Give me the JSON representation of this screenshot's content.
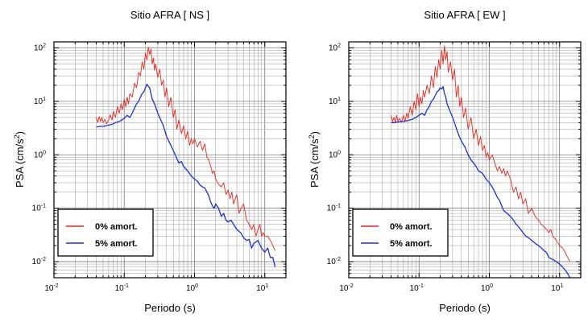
{
  "chart_data": [
    {
      "type": "line",
      "title": "Sitio AFRA [ NS ]",
      "xlabel": "Periodo (s)",
      "ylabel_main": "PSA (cm/s",
      "ylabel_sup": "2",
      "ylabel_tail": ")",
      "x_scale": "log",
      "y_scale": "log",
      "xlim": [
        0.01,
        20
      ],
      "ylim": [
        0.005,
        130
      ],
      "grid": true,
      "x_ticks": [
        {
          "base": "10",
          "exp": "-2"
        },
        {
          "base": "10",
          "exp": "-1"
        },
        {
          "base": "10",
          "exp": "0"
        },
        {
          "base": "10",
          "exp": "1"
        }
      ],
      "y_ticks": [
        {
          "base": "10",
          "exp": "-2"
        },
        {
          "base": "10",
          "exp": "-1"
        },
        {
          "base": "10",
          "exp": "0"
        },
        {
          "base": "10",
          "exp": "1"
        },
        {
          "base": "10",
          "exp": "2"
        }
      ],
      "legend_position": "bottom-left",
      "series": [
        {
          "name": "0% amort.",
          "color": "#e8261e",
          "x": [
            0.04,
            0.042,
            0.044,
            0.046,
            0.048,
            0.05,
            0.053,
            0.056,
            0.06,
            0.063,
            0.067,
            0.07,
            0.075,
            0.08,
            0.085,
            0.09,
            0.095,
            0.1,
            0.105,
            0.11,
            0.115,
            0.12,
            0.13,
            0.14,
            0.15,
            0.16,
            0.17,
            0.18,
            0.19,
            0.2,
            0.21,
            0.22,
            0.23,
            0.24,
            0.25,
            0.26,
            0.27,
            0.28,
            0.3,
            0.32,
            0.34,
            0.36,
            0.38,
            0.4,
            0.43,
            0.46,
            0.5,
            0.53,
            0.56,
            0.6,
            0.65,
            0.7,
            0.75,
            0.8,
            0.85,
            0.9,
            0.95,
            1.0,
            1.1,
            1.2,
            1.3,
            1.4,
            1.5,
            1.6,
            1.7,
            1.8,
            1.9,
            2.0,
            2.2,
            2.4,
            2.6,
            2.8,
            3.0,
            3.2,
            3.4,
            3.6,
            3.8,
            4.0,
            4.3,
            4.6,
            5.0,
            5.5,
            6.0,
            6.5,
            7.0,
            7.5,
            8.0,
            8.5,
            9.0,
            9.5,
            10,
            11,
            12,
            13,
            14
          ],
          "values": [
            5.0,
            4.0,
            5.2,
            4.2,
            5.0,
            4.0,
            4.6,
            3.8,
            4.5,
            5.6,
            4.5,
            6.5,
            5.0,
            8.0,
            6.0,
            9.0,
            7.0,
            11,
            8.0,
            12,
            9.0,
            14,
            12,
            22,
            18,
            35,
            30,
            55,
            40,
            80,
            60,
            105,
            75,
            95,
            50,
            65,
            38,
            50,
            28,
            40,
            20,
            25,
            12,
            18,
            8.0,
            12,
            5.0,
            7.0,
            3.0,
            4.5,
            2.5,
            3.5,
            2.0,
            2.8,
            1.5,
            2.0,
            1.6,
            2.0,
            1.4,
            1.8,
            1.2,
            1.6,
            0.9,
            0.8,
            0.6,
            0.45,
            0.5,
            0.35,
            0.28,
            0.25,
            0.3,
            0.18,
            0.22,
            0.15,
            0.2,
            0.12,
            0.15,
            0.18,
            0.08,
            0.1,
            0.12,
            0.06,
            0.05,
            0.04,
            0.05,
            0.03,
            0.04,
            0.05,
            0.03,
            0.035,
            0.03,
            0.03,
            0.025,
            0.02,
            0.016
          ]
        },
        {
          "name": "5% amort.",
          "color": "#1d2fd8",
          "x": [
            0.04,
            0.045,
            0.05,
            0.055,
            0.06,
            0.065,
            0.07,
            0.075,
            0.08,
            0.085,
            0.09,
            0.1,
            0.11,
            0.12,
            0.13,
            0.14,
            0.15,
            0.16,
            0.17,
            0.18,
            0.19,
            0.2,
            0.21,
            0.22,
            0.23,
            0.24,
            0.25,
            0.27,
            0.3,
            0.33,
            0.36,
            0.4,
            0.45,
            0.5,
            0.55,
            0.6,
            0.65,
            0.7,
            0.8,
            0.9,
            1.0,
            1.1,
            1.2,
            1.3,
            1.4,
            1.5,
            1.6,
            1.7,
            1.8,
            1.9,
            2.0,
            2.2,
            2.4,
            2.6,
            2.8,
            3.0,
            3.3,
            3.6,
            4.0,
            4.5,
            5.0,
            5.5,
            6.0,
            6.5,
            7.0,
            8.0,
            9.0,
            10,
            11,
            12,
            13,
            14
          ],
          "values": [
            3.3,
            3.4,
            3.4,
            3.5,
            3.6,
            3.7,
            3.8,
            4.0,
            4.1,
            4.2,
            4.4,
            4.8,
            5.5,
            5.0,
            6.0,
            7.5,
            9.0,
            10,
            12,
            14,
            15,
            18,
            21,
            19,
            18,
            14,
            11,
            9.0,
            6.0,
            4.5,
            3.5,
            2.2,
            1.6,
            1.2,
            0.9,
            0.7,
            0.75,
            0.6,
            0.5,
            0.4,
            0.35,
            0.32,
            0.27,
            0.25,
            0.24,
            0.2,
            0.17,
            0.13,
            0.11,
            0.1,
            0.12,
            0.1,
            0.07,
            0.08,
            0.06,
            0.055,
            0.06,
            0.05,
            0.04,
            0.035,
            0.028,
            0.025,
            0.026,
            0.018,
            0.022,
            0.025,
            0.018,
            0.015,
            0.018,
            0.012,
            0.012,
            0.008
          ]
        }
      ]
    },
    {
      "type": "line",
      "title": "Sitio AFRA [ EW ]",
      "xlabel": "Periodo (s)",
      "ylabel_main": "PSA (cm/s",
      "ylabel_sup": "2",
      "ylabel_tail": ")",
      "x_scale": "log",
      "y_scale": "log",
      "xlim": [
        0.01,
        20
      ],
      "ylim": [
        0.005,
        130
      ],
      "grid": true,
      "x_ticks": [
        {
          "base": "10",
          "exp": "-2"
        },
        {
          "base": "10",
          "exp": "-1"
        },
        {
          "base": "10",
          "exp": "0"
        },
        {
          "base": "10",
          "exp": "1"
        }
      ],
      "y_ticks": [
        {
          "base": "10",
          "exp": "-2"
        },
        {
          "base": "10",
          "exp": "-1"
        },
        {
          "base": "10",
          "exp": "0"
        },
        {
          "base": "10",
          "exp": "1"
        },
        {
          "base": "10",
          "exp": "2"
        }
      ],
      "legend_position": "bottom-left",
      "series": [
        {
          "name": "0% amort.",
          "color": "#e8261e",
          "x": [
            0.04,
            0.042,
            0.044,
            0.046,
            0.048,
            0.05,
            0.053,
            0.056,
            0.06,
            0.063,
            0.067,
            0.07,
            0.075,
            0.08,
            0.085,
            0.09,
            0.095,
            0.1,
            0.105,
            0.11,
            0.115,
            0.12,
            0.13,
            0.14,
            0.15,
            0.16,
            0.17,
            0.18,
            0.19,
            0.2,
            0.21,
            0.22,
            0.23,
            0.24,
            0.25,
            0.26,
            0.28,
            0.3,
            0.32,
            0.34,
            0.36,
            0.38,
            0.4,
            0.43,
            0.46,
            0.5,
            0.55,
            0.6,
            0.65,
            0.7,
            0.75,
            0.8,
            0.85,
            0.9,
            0.95,
            1.0,
            1.1,
            1.2,
            1.3,
            1.4,
            1.5,
            1.6,
            1.7,
            1.8,
            2.0,
            2.2,
            2.4,
            2.6,
            2.8,
            3.0,
            3.3,
            3.6,
            4.0,
            4.5,
            5.0,
            5.5,
            6.0,
            6.5,
            7.0,
            7.5,
            8.0,
            9.0,
            10,
            11,
            12,
            13,
            14
          ],
          "values": [
            5.5,
            4.2,
            5.0,
            4.0,
            5.5,
            4.2,
            4.8,
            4.0,
            5.5,
            4.2,
            6.0,
            4.8,
            8.0,
            5.5,
            10,
            7.0,
            14,
            8.0,
            12,
            9.0,
            16,
            12,
            20,
            14,
            30,
            18,
            45,
            28,
            60,
            40,
            90,
            50,
            110,
            60,
            85,
            35,
            55,
            25,
            40,
            12,
            20,
            8.0,
            12,
            5.0,
            7.5,
            3.0,
            5.0,
            2.0,
            3.0,
            1.5,
            2.2,
            1.2,
            1.5,
            0.9,
            1.1,
            0.8,
            1.0,
            0.7,
            0.5,
            0.6,
            0.45,
            0.55,
            0.4,
            0.5,
            0.35,
            0.2,
            0.25,
            0.15,
            0.2,
            0.12,
            0.15,
            0.08,
            0.1,
            0.07,
            0.06,
            0.05,
            0.045,
            0.04,
            0.035,
            0.04,
            0.03,
            0.025,
            0.02,
            0.018,
            0.015,
            0.012,
            0.01
          ]
        },
        {
          "name": "5% amort.",
          "color": "#1d2fd8",
          "x": [
            0.04,
            0.045,
            0.05,
            0.055,
            0.06,
            0.065,
            0.07,
            0.075,
            0.08,
            0.085,
            0.09,
            0.1,
            0.11,
            0.12,
            0.13,
            0.14,
            0.15,
            0.16,
            0.17,
            0.18,
            0.19,
            0.2,
            0.21,
            0.22,
            0.23,
            0.24,
            0.25,
            0.27,
            0.3,
            0.33,
            0.36,
            0.4,
            0.45,
            0.5,
            0.55,
            0.6,
            0.65,
            0.7,
            0.8,
            0.9,
            1.0,
            1.1,
            1.2,
            1.3,
            1.4,
            1.5,
            1.6,
            1.8,
            2.0,
            2.2,
            2.4,
            2.6,
            2.8,
            3.0,
            3.3,
            3.6,
            4.0,
            4.5,
            5.0,
            5.5,
            6.0,
            6.5,
            7.0,
            8.0,
            9.0,
            10,
            11,
            12,
            13,
            14
          ],
          "values": [
            4.0,
            4.0,
            4.1,
            4.2,
            4.2,
            4.3,
            4.4,
            4.5,
            4.6,
            4.8,
            5.0,
            5.5,
            6.0,
            5.5,
            7.0,
            8.0,
            10,
            11,
            13,
            15,
            16,
            18,
            17,
            19,
            14,
            12,
            9.0,
            7.0,
            5.0,
            3.5,
            2.5,
            1.8,
            1.4,
            1.0,
            0.8,
            0.7,
            0.6,
            0.5,
            0.45,
            0.35,
            0.3,
            0.25,
            0.2,
            0.16,
            0.14,
            0.11,
            0.09,
            0.08,
            0.07,
            0.06,
            0.05,
            0.045,
            0.04,
            0.035,
            0.03,
            0.028,
            0.025,
            0.022,
            0.02,
            0.018,
            0.016,
            0.015,
            0.012,
            0.011,
            0.01,
            0.009,
            0.008,
            0.007,
            0.006,
            0.005
          ]
        }
      ]
    }
  ]
}
